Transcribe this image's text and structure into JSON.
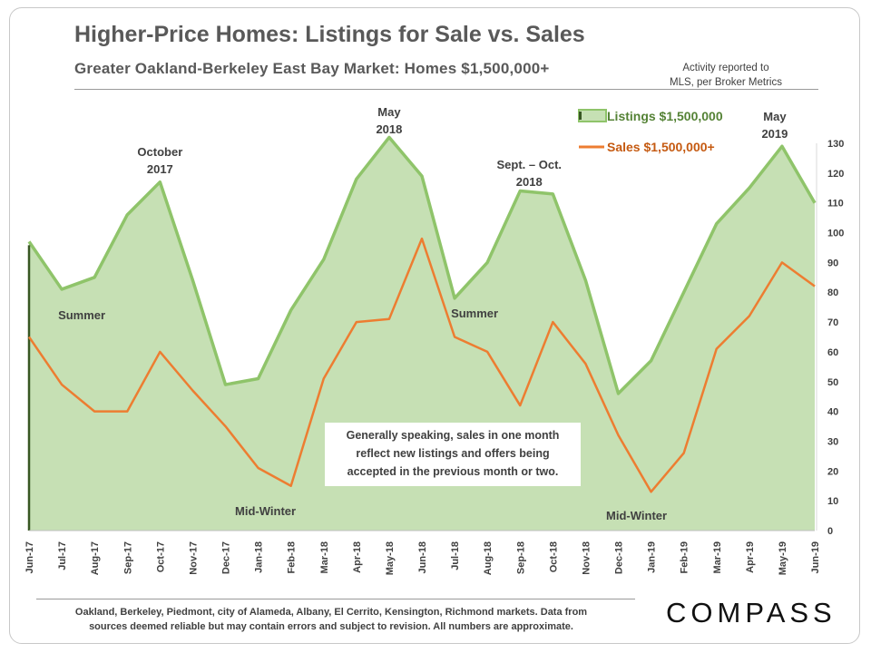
{
  "header": {
    "title": "Higher-Price Homes: Listings for Sale vs. Sales",
    "subtitle": "Greater Oakland-Berkeley  East Bay Market: Homes $1,500,000+",
    "activity_lines": [
      "Activity reported to",
      "MLS, per Broker Metrics"
    ]
  },
  "note_lines": [
    "Generally speaking, sales in one month",
    "reflect new listings and offers being",
    "accepted in the previous month or two."
  ],
  "footer_lines": [
    "Oakland,  Berkeley,  Piedmont,  city of Alameda,  Albany,  El Cerrito, Kensington,  Richmond markets. Data from",
    "sources deemed reliable but may contain  errors and  subject to revision.  All numbers are approximate."
  ],
  "logo": "COMPASS",
  "colors": {
    "listings_fill": "#c6e0b4",
    "listings_line": "#8fc46a",
    "sales_line": "#ed7d31",
    "legend_listings_text": "#548235",
    "legend_sales_text": "#c55a11"
  },
  "chart_data": {
    "type": "area",
    "categories": [
      "Jun-17",
      "Jul-17",
      "Aug-17",
      "Sep-17",
      "Oct-17",
      "Nov-17",
      "Dec-17",
      "Jan-18",
      "Feb-18",
      "Mar-18",
      "Apr-18",
      "May-18",
      "Jun-18",
      "Jul-18",
      "Aug-18",
      "Sep-18",
      "Oct-18",
      "Nov-18",
      "Dec-18",
      "Jan-19",
      "Feb-19",
      "Mar-19",
      "Apr-19",
      "May-19",
      "Jun-19"
    ],
    "series": [
      {
        "name": "Listings $1,500,000",
        "type": "area",
        "values": [
          97,
          81,
          85,
          106,
          117,
          84,
          49,
          51,
          74,
          91,
          118,
          132,
          119,
          78,
          90,
          114,
          113,
          84,
          46,
          57,
          80,
          103,
          115,
          129,
          110
        ]
      },
      {
        "name": "Sales $1,500,000+",
        "type": "line",
        "values": [
          65,
          49,
          40,
          40,
          60,
          47,
          35,
          21,
          15,
          51,
          70,
          71,
          98,
          65,
          60,
          42,
          70,
          56,
          32,
          13,
          26,
          61,
          72,
          90,
          82
        ]
      }
    ],
    "y_axis": {
      "position": "right",
      "min": 0,
      "max": 130,
      "ticks": [
        0,
        10,
        20,
        30,
        40,
        50,
        60,
        70,
        80,
        90,
        100,
        110,
        120,
        130
      ]
    },
    "grid": false,
    "legend": "top-right",
    "annotations": [
      {
        "lines": [
          "October",
          "2017"
        ],
        "category": "Oct-17"
      },
      {
        "lines": [
          "May",
          "2018"
        ],
        "category": "May-18"
      },
      {
        "lines": [
          "Sept. – Oct.",
          "2018"
        ],
        "category": "Sep-18"
      },
      {
        "lines": [
          "May",
          "2019"
        ],
        "category": "May-19"
      },
      {
        "lines": [
          "Summer"
        ],
        "category": "Jul-17"
      },
      {
        "lines": [
          "Summer"
        ],
        "category": "Jul-18"
      },
      {
        "lines": [
          "Mid-Winter"
        ],
        "category": "Jan-18"
      },
      {
        "lines": [
          "Mid-Winter"
        ],
        "category": "Jan-19"
      }
    ]
  }
}
